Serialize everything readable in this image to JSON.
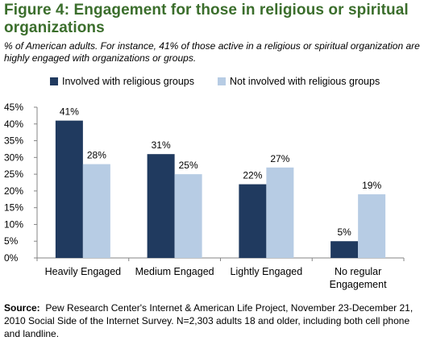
{
  "title": "Figure 4: Engagement for those in religious or spiritual organizations",
  "subtitle": "% of American adults. For instance, 41% of those active in a religious or spiritual organization are highly engaged with organizations or groups.",
  "source_label": "Source:",
  "source_text": "Pew Research Center's Internet & American Life Project, November 23-December 21, 2010 Social Side of the Internet Survey. N=2,303 adults 18 and older, including both cell phone and landline.",
  "colors": {
    "involved": "#203a5f",
    "not_involved": "#b7cce4",
    "title": "#3b6e2c"
  },
  "chart_data": {
    "type": "bar",
    "categories": [
      [
        "Heavily Engaged"
      ],
      [
        "Medium Engaged"
      ],
      [
        "Lightly Engaged"
      ],
      [
        "No regular",
        "Engagement"
      ]
    ],
    "series": [
      {
        "name": "Involved with religious groups",
        "values": [
          41,
          31,
          22,
          5
        ],
        "labels": [
          "41%",
          "31%",
          "22%",
          "5%"
        ]
      },
      {
        "name": "Not involved with religious groups",
        "values": [
          28,
          25,
          27,
          19
        ],
        "labels": [
          "28%",
          "25%",
          "27%",
          "19%"
        ]
      }
    ],
    "y_ticks": [
      "0%",
      "5%",
      "10%",
      "15%",
      "20%",
      "25%",
      "30%",
      "35%",
      "40%",
      "45%"
    ],
    "ylim": [
      0,
      45
    ],
    "grid": false,
    "legend": "top"
  }
}
